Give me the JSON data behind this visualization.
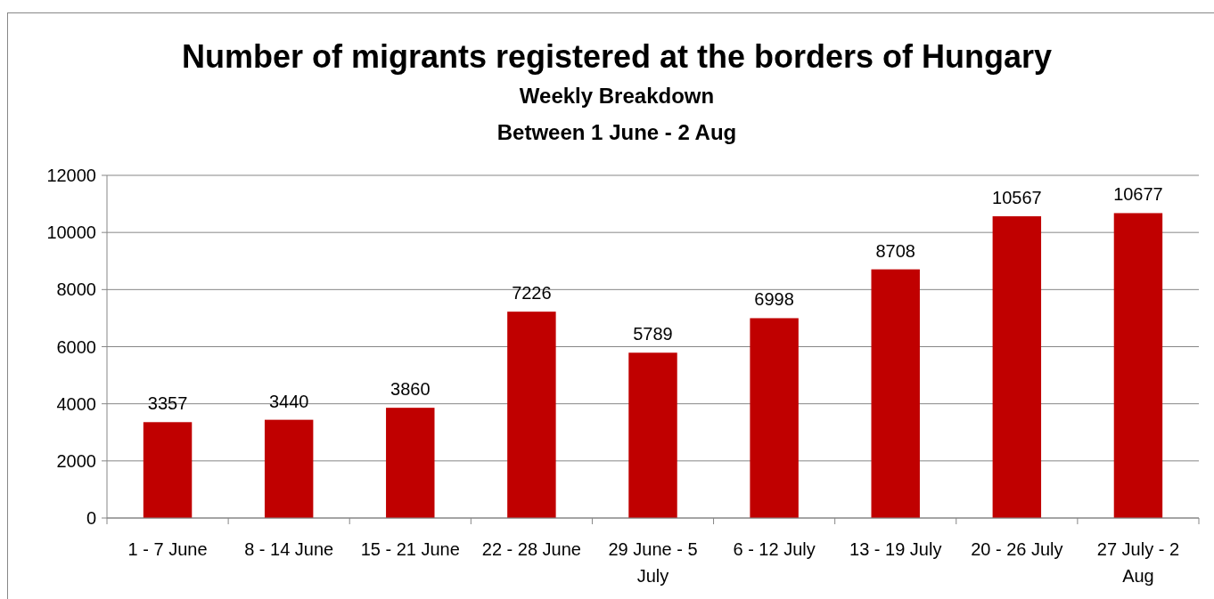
{
  "chart_data": {
    "type": "bar",
    "title": "Number of migrants registered at the borders of Hungary",
    "subtitle": "Weekly Breakdown\nBetween 1 June - 2 Aug",
    "categories": [
      "1 - 7 June",
      "8 - 14 June",
      "15 - 21 June",
      "22 - 28 June",
      "29 June - 5 July",
      "6 - 12 July",
      "13 - 19 July",
      "20 - 26 July",
      "27 July - 2 Aug"
    ],
    "values": [
      3357,
      3440,
      3860,
      7226,
      5789,
      6998,
      8708,
      10567,
      10677
    ],
    "color": "#c00000",
    "ylim": [
      0,
      12000
    ],
    "yticks": [
      0,
      2000,
      4000,
      6000,
      8000,
      10000,
      12000
    ],
    "grid": "y",
    "data_labels": true
  }
}
